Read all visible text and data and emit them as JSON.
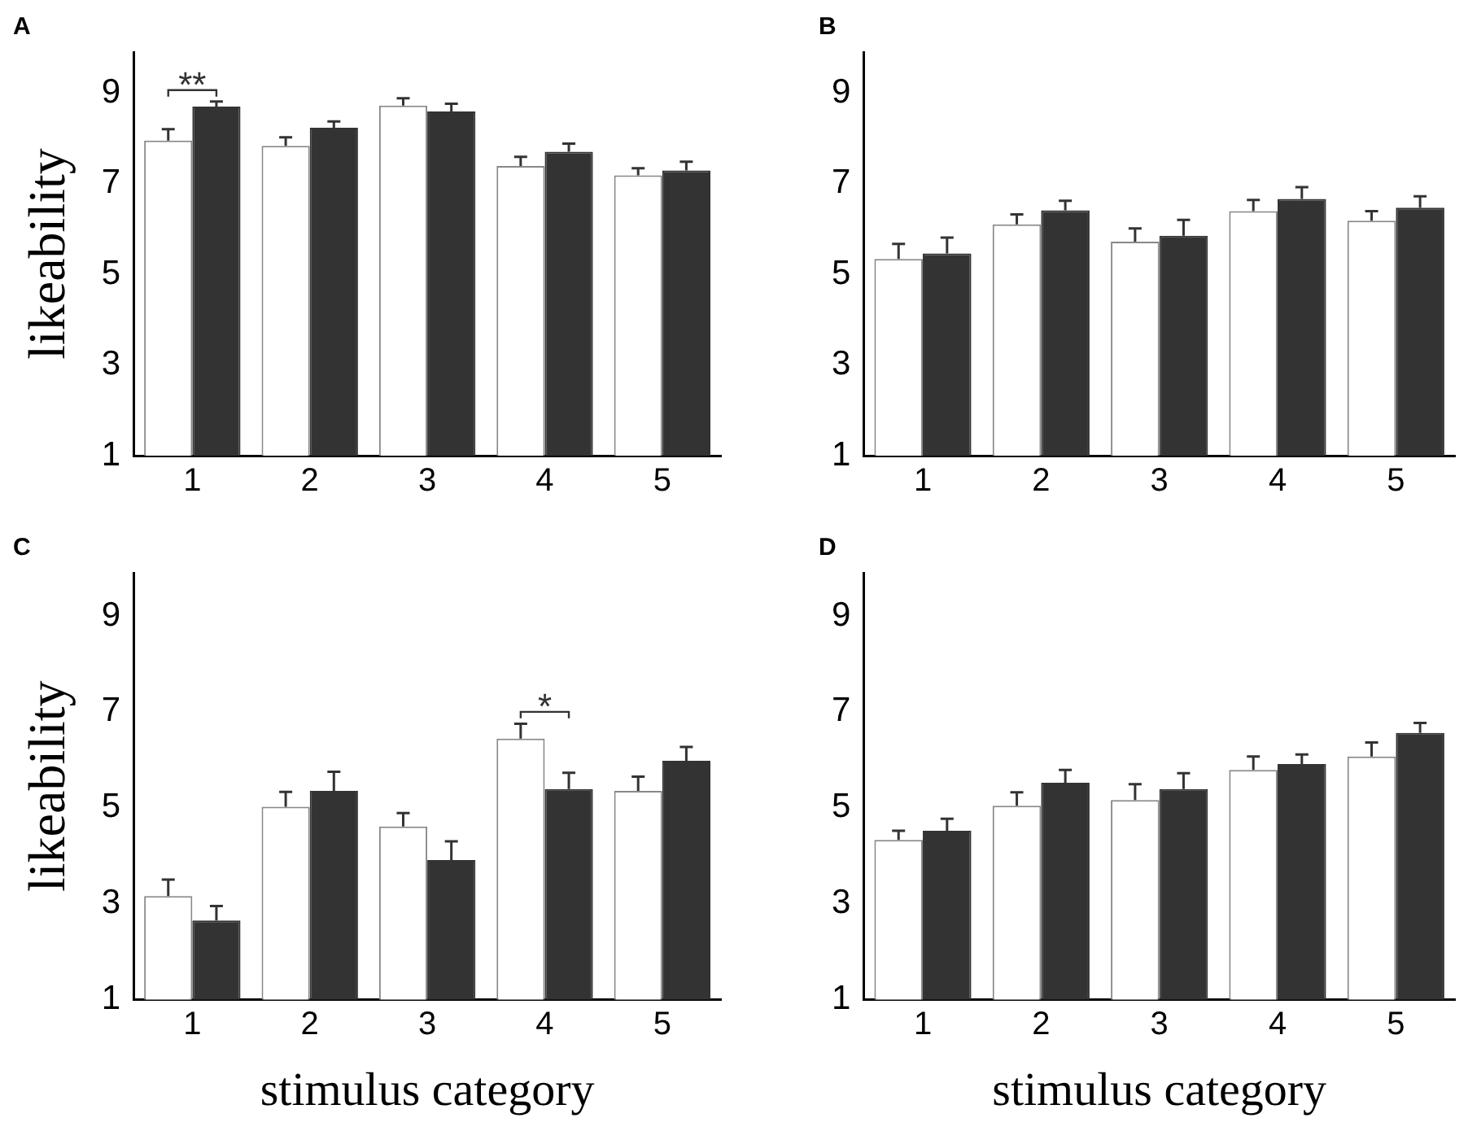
{
  "chart_data": [
    {
      "type": "bar",
      "title": "A",
      "ylabel": "likeability",
      "categories": [
        "1",
        "2",
        "3",
        "4",
        "5"
      ],
      "ylim": [
        1,
        9.9
      ],
      "yticks": [
        1,
        3,
        5,
        7,
        9
      ],
      "series": [
        {
          "color": "#ffffff",
          "values": [
            7.95,
            7.83,
            8.72,
            7.39,
            7.18
          ],
          "errors": [
            [
              7.95,
              8.2
            ],
            [
              7.83,
              8.02
            ],
            [
              8.72,
              8.88
            ],
            [
              7.39,
              7.59
            ],
            [
              7.18,
              7.34
            ]
          ]
        },
        {
          "color": "#333333",
          "values": [
            8.7,
            8.23,
            8.59,
            7.7,
            7.29
          ],
          "errors": [
            [
              8.7,
              8.81
            ],
            [
              8.23,
              8.37
            ],
            [
              8.59,
              8.76
            ],
            [
              7.7,
              7.88
            ],
            [
              7.29,
              7.48
            ]
          ]
        }
      ],
      "annotations": [
        "**"
      ]
    },
    {
      "type": "bar",
      "title": "B",
      "categories": [
        "1",
        "2",
        "3",
        "4",
        "5"
      ],
      "ylim": [
        1,
        9.9
      ],
      "yticks": [
        1,
        3,
        5,
        7,
        9
      ],
      "series": [
        {
          "color": "#ffffff",
          "values": [
            5.34,
            6.1,
            5.72,
            6.39,
            6.18
          ],
          "errors": [
            [
              5.34,
              5.67
            ],
            [
              6.1,
              6.32
            ],
            [
              5.72,
              6.01
            ],
            [
              6.39,
              6.64
            ],
            [
              6.18,
              6.39
            ]
          ]
        },
        {
          "color": "#333333",
          "values": [
            5.46,
            6.41,
            5.85,
            6.66,
            6.47
          ],
          "errors": [
            [
              5.46,
              5.81
            ],
            [
              6.41,
              6.62
            ],
            [
              5.85,
              6.2
            ],
            [
              6.66,
              6.92
            ],
            [
              6.47,
              6.72
            ]
          ]
        }
      ]
    },
    {
      "type": "bar",
      "title": "C",
      "ylabel": "likeability",
      "xlabel": "stimulus category",
      "categories": [
        "1",
        "2",
        "3",
        "4",
        "5"
      ],
      "ylim": [
        1,
        9.9
      ],
      "yticks": [
        1,
        3,
        5,
        7,
        9
      ],
      "series": [
        {
          "color": "#ffffff",
          "values": [
            3.16,
            5.02,
            4.61,
            6.44,
            5.35
          ],
          "errors": [
            [
              3.16,
              3.5
            ],
            [
              5.02,
              5.33
            ],
            [
              4.61,
              4.89
            ],
            [
              6.44,
              6.75
            ],
            [
              5.35,
              5.65
            ]
          ]
        },
        {
          "color": "#333333",
          "values": [
            2.65,
            5.35,
            3.91,
            5.39,
            5.98
          ],
          "errors": [
            [
              2.65,
              2.95
            ],
            [
              5.35,
              5.75
            ],
            [
              3.91,
              4.3
            ],
            [
              5.39,
              5.73
            ],
            [
              5.98,
              6.27
            ]
          ]
        }
      ],
      "annotations": [
        "*"
      ]
    },
    {
      "type": "bar",
      "title": "D",
      "xlabel": "stimulus category",
      "categories": [
        "1",
        "2",
        "3",
        "4",
        "5"
      ],
      "ylim": [
        1,
        9.9
      ],
      "yticks": [
        1,
        3,
        5,
        7,
        9
      ],
      "series": [
        {
          "color": "#ffffff",
          "values": [
            4.33,
            5.04,
            5.16,
            5.79,
            6.07
          ],
          "errors": [
            [
              4.33,
              4.52
            ],
            [
              5.04,
              5.32
            ],
            [
              5.16,
              5.49
            ],
            [
              5.79,
              6.07
            ],
            [
              6.07,
              6.36
            ]
          ]
        },
        {
          "color": "#333333",
          "values": [
            4.52,
            5.52,
            5.39,
            5.91,
            6.56
          ],
          "errors": [
            [
              4.52,
              4.77
            ],
            [
              5.52,
              5.79
            ],
            [
              5.39,
              5.72
            ],
            [
              5.91,
              6.11
            ],
            [
              6.56,
              6.77
            ]
          ]
        }
      ]
    }
  ]
}
